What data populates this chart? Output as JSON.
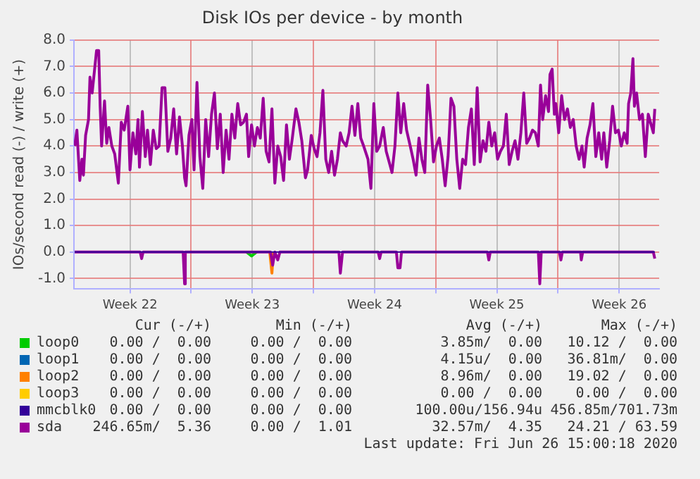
{
  "chart_data": {
    "type": "line",
    "title": "Disk IOs per device - by month",
    "ylabel": "IOs/second read (-) / write (+)",
    "xlim": [
      "2020-05-25T07:00",
      "2020-06-27T19:00"
    ],
    "xticks": [
      {
        "value": "2020-05-28T12:00",
        "label": "Week 22"
      },
      {
        "value": "2020-06-01T00:00",
        "label": null
      },
      {
        "value": "2020-06-04T12:00",
        "label": "Week 23"
      },
      {
        "value": "2020-06-08T00:00",
        "label": null
      },
      {
        "value": "2020-06-11T12:00",
        "label": "Week 24"
      },
      {
        "value": "2020-06-15T00:00",
        "label": null
      },
      {
        "value": "2020-06-18T12:00",
        "label": "Week 25"
      },
      {
        "value": "2020-06-22T00:00",
        "label": null
      },
      {
        "value": "2020-06-25T12:00",
        "label": "Week 26"
      }
    ],
    "ylim": [
      -1.4,
      8.0
    ],
    "yticks": [
      {
        "value": -1,
        "label": "-1.0"
      },
      {
        "value": 0,
        "label": "0.0"
      },
      {
        "value": 1,
        "label": "1.0"
      },
      {
        "value": 2,
        "label": "2.0"
      },
      {
        "value": 3,
        "label": "3.0"
      },
      {
        "value": 4,
        "label": "4.0"
      },
      {
        "value": 5,
        "label": "5.0"
      },
      {
        "value": 6,
        "label": "6.0"
      },
      {
        "value": 7,
        "label": "7.0"
      },
      {
        "value": 8,
        "label": "8.0"
      }
    ],
    "grid": true,
    "legend": "bottom",
    "series": [
      {
        "name": "loop0",
        "color": "#00cc00",
        "x": [
          "2020-06-04T04:00",
          "2020-06-04T11:00",
          "2020-06-04T18:00"
        ],
        "values": [
          0,
          -0.15,
          0
        ]
      },
      {
        "name": "loop1",
        "color": "#0066b3"
      },
      {
        "name": "loop2",
        "color": "#ff8000",
        "x": [
          "2020-06-05T12:00",
          "2020-06-05T15:00",
          "2020-06-05T17:00"
        ],
        "values": [
          0,
          -0.8,
          0
        ]
      },
      {
        "name": "loop3",
        "color": "#ffcc00"
      },
      {
        "name": "mmcblk0",
        "color": "#330099",
        "x": [
          "2020-05-25T08:00",
          "2020-06-27T13:00"
        ],
        "values": [
          0,
          0
        ]
      },
      {
        "color": "#990099",
        "x": [
          "2020-05-25T08:00",
          "2020-05-29T02:00",
          "2020-05-29T04:00",
          "2020-05-29T06:00",
          "2020-05-31T13:00",
          "2020-05-31T15:00",
          "2020-05-31T16:00",
          "2020-06-05T13:00",
          "2020-06-05T16:00",
          "2020-06-05T19:00",
          "2020-06-05T23:00",
          "2020-06-06T02:00",
          "2020-06-09T11:00",
          "2020-06-09T13:00",
          "2020-06-09T16:00",
          "2020-06-11T17:00",
          "2020-06-11T19:00",
          "2020-06-11T21:00",
          "2020-06-12T18:00",
          "2020-06-12T20:00",
          "2020-06-12T23:00",
          "2020-06-13T01:00",
          "2020-06-17T23:00",
          "2020-06-18T01:00",
          "2020-06-18T03:00",
          "2020-06-20T21:00",
          "2020-06-20T23:00",
          "2020-06-21T01:00",
          "2020-06-22T02:00",
          "2020-06-22T04:00",
          "2020-06-22T06:00",
          "2020-06-23T07:00",
          "2020-06-23T08:00",
          "2020-06-23T10:00",
          "2020-06-27T11:00",
          "2020-06-27T13:00"
        ],
        "values": [
          0,
          0,
          -0.25,
          0,
          0,
          -1.2,
          0,
          0,
          -0.5,
          0,
          -0.3,
          0,
          0,
          -0.8,
          0,
          0,
          -0.25,
          0,
          0,
          -0.6,
          -0.6,
          0,
          0,
          -0.3,
          0,
          0,
          -1.2,
          0,
          0,
          -0.3,
          0,
          0,
          -0.3,
          0,
          0,
          -0.25
        ]
      },
      {
        "name": "sda",
        "color": "#990099",
        "x": [
          "2020-05-25T08:00",
          "2020-05-25T11:00",
          "2020-05-25T15:00",
          "2020-05-25T18:00",
          "2020-05-25T20:00",
          "2020-05-25T23:00",
          "2020-05-26T03:00",
          "2020-05-26T05:00",
          "2020-05-26T08:00",
          "2020-05-26T11:00",
          "2020-05-26T14:00",
          "2020-05-26T17:00",
          "2020-05-26T19:00",
          "2020-05-26T21:00",
          "2020-05-27T01:00",
          "2020-05-27T04:00",
          "2020-05-27T07:00",
          "2020-05-27T11:00",
          "2020-05-27T15:00",
          "2020-05-27T20:00",
          "2020-05-28T00:00",
          "2020-05-28T04:00",
          "2020-05-28T09:00",
          "2020-05-28T12:00",
          "2020-05-28T16:00",
          "2020-05-28T20:00",
          "2020-05-28T23:00",
          "2020-05-29T01:00",
          "2020-05-29T05:00",
          "2020-05-29T09:00",
          "2020-05-29T12:00",
          "2020-05-29T16:00",
          "2020-05-29T20:00",
          "2020-05-30T00:00",
          "2020-05-30T04:00",
          "2020-05-30T08:00",
          "2020-05-30T12:00",
          "2020-05-30T16:00",
          "2020-05-30T20:00",
          "2020-05-31T00:00",
          "2020-05-31T04:00",
          "2020-05-31T08:00",
          "2020-05-31T12:00",
          "2020-05-31T15:00",
          "2020-05-31T17:00",
          "2020-05-31T21:00",
          "2020-06-01T01:00",
          "2020-06-01T04:00",
          "2020-06-01T08:00",
          "2020-06-01T12:00",
          "2020-06-01T16:00",
          "2020-06-01T20:00",
          "2020-06-02T00:00",
          "2020-06-02T04:00",
          "2020-06-02T08:00",
          "2020-06-02T12:00",
          "2020-06-02T16:00",
          "2020-06-02T20:00",
          "2020-06-03T00:00",
          "2020-06-03T04:00",
          "2020-06-03T08:00",
          "2020-06-03T12:00",
          "2020-06-03T16:00",
          "2020-06-03T20:00",
          "2020-06-04T00:00",
          "2020-06-04T04:00",
          "2020-06-04T07:00",
          "2020-06-04T11:00",
          "2020-06-04T15:00",
          "2020-06-04T19:00",
          "2020-06-04T23:00",
          "2020-06-05T03:00",
          "2020-06-05T07:00",
          "2020-06-05T11:00",
          "2020-06-05T15:00",
          "2020-06-05T19:00",
          "2020-06-05T23:00",
          "2020-06-06T03:00",
          "2020-06-06T07:00",
          "2020-06-06T11:00",
          "2020-06-06T15:00",
          "2020-06-06T19:00",
          "2020-06-07T00:00",
          "2020-06-07T04:00",
          "2020-06-07T08:00",
          "2020-06-07T13:00",
          "2020-06-07T16:00",
          "2020-06-07T21:00",
          "2020-06-08T01:00",
          "2020-06-08T05:00",
          "2020-06-08T09:00",
          "2020-06-08T13:00",
          "2020-06-08T17:00",
          "2020-06-08T21:00",
          "2020-06-09T01:00",
          "2020-06-09T05:00",
          "2020-06-09T09:00",
          "2020-06-09T13:00",
          "2020-06-09T16:00",
          "2020-06-09T21:00",
          "2020-06-10T01:00",
          "2020-06-10T05:00",
          "2020-06-10T09:00",
          "2020-06-10T13:00",
          "2020-06-10T17:00",
          "2020-06-10T21:00",
          "2020-06-11T03:00",
          "2020-06-11T07:00",
          "2020-06-11T11:00",
          "2020-06-11T15:00",
          "2020-06-11T19:00",
          "2020-06-12T00:00",
          "2020-06-12T04:00",
          "2020-06-12T08:00",
          "2020-06-12T12:00",
          "2020-06-12T16:00",
          "2020-06-12T20:00",
          "2020-06-13T00:00",
          "2020-06-13T04:00",
          "2020-06-13T08:00",
          "2020-06-13T13:00",
          "2020-06-13T17:00",
          "2020-06-13T21:00",
          "2020-06-14T01:00",
          "2020-06-14T05:00",
          "2020-06-14T09:00",
          "2020-06-14T13:00",
          "2020-06-14T17:00",
          "2020-06-14T21:00",
          "2020-06-15T01:00",
          "2020-06-15T05:00",
          "2020-06-15T09:00",
          "2020-06-15T13:00",
          "2020-06-15T17:00",
          "2020-06-15T21:00",
          "2020-06-16T01:00",
          "2020-06-16T05:00",
          "2020-06-16T09:00",
          "2020-06-16T13:00",
          "2020-06-16T17:00",
          "2020-06-16T21:00",
          "2020-06-17T01:00",
          "2020-06-17T05:00",
          "2020-06-17T09:00",
          "2020-06-17T13:00",
          "2020-06-17T17:00",
          "2020-06-17T21:00",
          "2020-06-18T01:00",
          "2020-06-18T05:00",
          "2020-06-18T09:00",
          "2020-06-18T13:00",
          "2020-06-18T17:00",
          "2020-06-18T21:00",
          "2020-06-19T01:00",
          "2020-06-19T05:00",
          "2020-06-19T09:00",
          "2020-06-19T13:00",
          "2020-06-19T17:00",
          "2020-06-19T21:00",
          "2020-06-20T01:00",
          "2020-06-20T05:00",
          "2020-06-20T09:00",
          "2020-06-20T13:00",
          "2020-06-20T17:00",
          "2020-06-20T21:00",
          "2020-06-21T00:00",
          "2020-06-21T03:00",
          "2020-06-21T07:00",
          "2020-06-21T11:00",
          "2020-06-21T13:00",
          "2020-06-21T16:00",
          "2020-06-21T19:00",
          "2020-06-21T21:00",
          "2020-06-22T01:00",
          "2020-06-22T05:00",
          "2020-06-22T09:00",
          "2020-06-22T13:00",
          "2020-06-22T17:00",
          "2020-06-22T21:00",
          "2020-06-23T01:00",
          "2020-06-23T05:00",
          "2020-06-23T09:00",
          "2020-06-23T12:00",
          "2020-06-23T16:00",
          "2020-06-23T20:00",
          "2020-06-24T00:00",
          "2020-06-24T04:00",
          "2020-06-24T08:00",
          "2020-06-24T12:00",
          "2020-06-24T15:00",
          "2020-06-24T19:00",
          "2020-06-24T23:00",
          "2020-06-25T03:00",
          "2020-06-25T07:00",
          "2020-06-25T11:00",
          "2020-06-25T15:00",
          "2020-06-25T19:00",
          "2020-06-25T23:00",
          "2020-06-26T01:00",
          "2020-06-26T04:00",
          "2020-06-26T07:00",
          "2020-06-26T09:00",
          "2020-06-26T12:00",
          "2020-06-26T16:00",
          "2020-06-26T20:00",
          "2020-06-27T00:00",
          "2020-06-27T04:00",
          "2020-06-27T08:00",
          "2020-06-27T11:00",
          "2020-06-27T13:00"
        ],
        "values": [
          4.0,
          4.6,
          2.7,
          3.5,
          2.9,
          4.4,
          5.0,
          6.6,
          6.0,
          6.8,
          7.6,
          7.6,
          5.5,
          4.0,
          5.7,
          4.1,
          4.7,
          4.0,
          3.7,
          2.6,
          4.9,
          4.6,
          5.5,
          3.1,
          4.5,
          3.7,
          5.0,
          3.2,
          5.3,
          3.6,
          4.6,
          3.3,
          4.6,
          3.9,
          4.0,
          6.2,
          6.2,
          3.8,
          4.3,
          5.4,
          3.7,
          5.1,
          4.0,
          2.8,
          2.5,
          4.4,
          5.0,
          3.1,
          6.4,
          3.6,
          2.4,
          5.0,
          3.6,
          5.2,
          6.0,
          3.9,
          5.2,
          3.0,
          4.6,
          3.5,
          5.2,
          4.3,
          5.6,
          4.8,
          4.9,
          5.2,
          3.6,
          4.8,
          4.0,
          4.7,
          4.3,
          5.8,
          3.8,
          3.4,
          5.4,
          2.6,
          4.0,
          3.6,
          2.7,
          4.8,
          3.5,
          4.3,
          5.4,
          4.9,
          4.2,
          2.8,
          3.1,
          4.4,
          3.9,
          3.6,
          4.5,
          6.1,
          3.5,
          3.0,
          3.8,
          2.9,
          3.5,
          4.5,
          4.2,
          4.0,
          4.5,
          5.5,
          4.4,
          5.6,
          4.3,
          4.0,
          3.5,
          2.4,
          5.6,
          3.8,
          4.0,
          4.7,
          3.8,
          3.4,
          3.0,
          4.0,
          6.0,
          4.5,
          5.6,
          4.6,
          4.0,
          3.5,
          2.9,
          4.3,
          3.5,
          3.0,
          6.3,
          5.0,
          3.4,
          4.0,
          4.3,
          3.5,
          2.5,
          3.6,
          5.8,
          5.5,
          3.5,
          2.4,
          3.5,
          3.3,
          4.7,
          5.4,
          3.3,
          6.2,
          3.4,
          4.2,
          3.8,
          4.9,
          4.0,
          4.5,
          3.5,
          3.8,
          4.0,
          5.2,
          3.3,
          3.8,
          4.2,
          3.5,
          4.5,
          6.0,
          4.1,
          4.3,
          4.6,
          4.5,
          4.0,
          6.3,
          5.0,
          5.9,
          5.3,
          6.7,
          6.9,
          5.2,
          5.6,
          4.5,
          5.9,
          5.0,
          5.4,
          4.7,
          5.0,
          4.0,
          3.5,
          4.0,
          3.2,
          4.3,
          4.8,
          5.6,
          3.6,
          4.5,
          3.5,
          4.5,
          3.2,
          4.2,
          5.5,
          4.5,
          4.6,
          4.0,
          4.5,
          4.1,
          5.6,
          6.0,
          7.3,
          5.5,
          6.0,
          5.0,
          5.2,
          3.6,
          5.2,
          4.8,
          4.5,
          5.4
        ]
      }
    ],
    "annotations": [
      "Cur (-/+)",
      "Min (-/+)",
      "Avg (-/+)",
      "Max (-/+)",
      "0.00 /  0.00",
      "0.00 /  0.00",
      "3.85m/  0.00",
      "10.12 /  0.00",
      "0.00 /  0.00",
      "0.00 /  0.00",
      "4.15u/  0.00",
      "36.81m/  0.00",
      "0.00 /  0.00",
      "0.00 /  0.00",
      "8.96m/  0.00",
      "19.02 /  0.00",
      "0.00 /  0.00",
      "0.00 /  0.00",
      "0.00 /  0.00",
      "0.00 /  0.00",
      "0.00 /  0.00",
      "0.00 /  0.00",
      "100.00u/156.94u",
      "456.85m/701.73m",
      "246.65m/  5.36",
      "0.00 /  1.01",
      "32.57m/  4.35",
      "24.21 / 63.59",
      "Last update: Fri Jun 26 15:00:18 2020"
    ]
  }
}
